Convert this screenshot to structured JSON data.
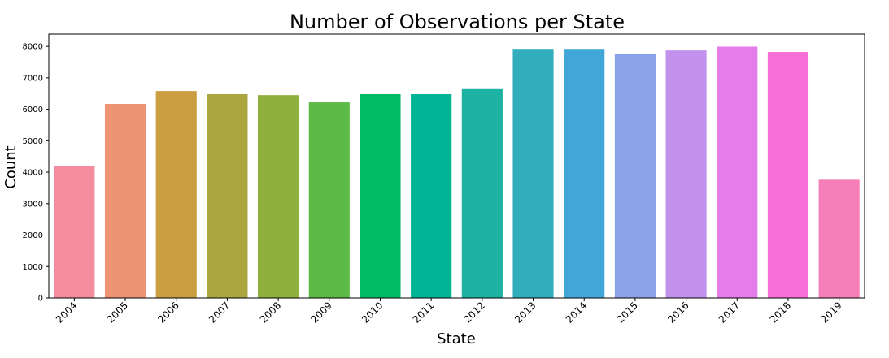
{
  "chart_data": {
    "type": "bar",
    "title": "Number of Observations per State",
    "xlabel": "State",
    "ylabel": "Count",
    "categories": [
      "2004",
      "2005",
      "2006",
      "2007",
      "2008",
      "2009",
      "2010",
      "2011",
      "2012",
      "2013",
      "2014",
      "2015",
      "2016",
      "2017",
      "2018",
      "2019"
    ],
    "values": [
      4200,
      6170,
      6580,
      6480,
      6450,
      6220,
      6480,
      6480,
      6640,
      7920,
      7920,
      7760,
      7870,
      7990,
      7820,
      3760
    ],
    "colors": [
      "#f48b9e",
      "#ee9474",
      "#cb9e41",
      "#aca641",
      "#8fb03d",
      "#5dba47",
      "#00bb64",
      "#00b595",
      "#1eb2a2",
      "#31adbc",
      "#41a7d8",
      "#8aa2e8",
      "#c292ed",
      "#e47de9",
      "#f66fd8",
      "#f57eb8"
    ],
    "yticks": [
      0,
      1000,
      2000,
      3000,
      4000,
      5000,
      6000,
      7000,
      8000
    ],
    "ylim": [
      0,
      8390
    ],
    "grid": false,
    "legend": "none"
  }
}
